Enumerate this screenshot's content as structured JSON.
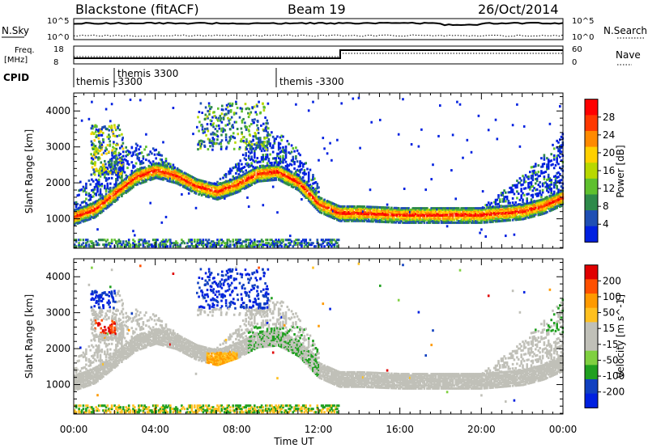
{
  "header": {
    "title": "Blackstone (fitACF)",
    "beam": "Beam 19",
    "date": "26/Oct/2014"
  },
  "top_panels": {
    "nsky_label": "N.Sky",
    "nsearch_label": "N.Search",
    "nsky_ticks": [
      "10^5",
      "10^0"
    ],
    "nsearch_ticks": [
      "10^5",
      "10^0"
    ],
    "freq_label_1": "Freq.",
    "freq_label_2": "[MHz]",
    "freq_ticks": [
      "18",
      "8"
    ],
    "nave_label": "Nave",
    "nave_ticks": [
      "60",
      "0"
    ],
    "cpid_label": "CPID",
    "cpid_segments": [
      {
        "label_1": "themis",
        "label_2": "",
        "start_hour": 0.0
      },
      {
        "label_1": "themis 3300",
        "label_2": "-3300",
        "start_hour": 1.65
      },
      {
        "label_1": "themis -3300",
        "label_2": "",
        "start_hour": 10.0
      }
    ]
  },
  "colors": {
    "power_scale": [
      "#0020e0",
      "#1f4fb4",
      "#2e8a4a",
      "#5fc02e",
      "#b8d800",
      "#ffd000",
      "#ff8a00",
      "#ff3800",
      "#ff0000"
    ],
    "velocity_scale": [
      "#e00000",
      "#ff5000",
      "#ff9a00",
      "#ffc020",
      "#c0c0b8",
      "#c0c0b8",
      "#7fd040",
      "#20a020",
      "#1040c0",
      "#0020e0"
    ]
  },
  "chart_data": [
    {
      "type": "heatmap",
      "name": "Power",
      "xlabel": "",
      "ylabel": "Slant Range [km]",
      "xlim": [
        0,
        24
      ],
      "ylim": [
        180,
        4500
      ],
      "yticks": [
        "1000",
        "2000",
        "3000",
        "4000"
      ],
      "colorbar_label": "Power [dB]",
      "colorbar_ticks": [
        "4",
        "8",
        "12",
        "16",
        "20",
        "24",
        "28"
      ],
      "main_echo_range_km": [
        [
          0.0,
          1050
        ],
        [
          1.0,
          1250
        ],
        [
          2.0,
          1700
        ],
        [
          3.0,
          2150
        ],
        [
          4.0,
          2350
        ],
        [
          5.0,
          2200
        ],
        [
          6.0,
          1900
        ],
        [
          7.0,
          1750
        ],
        [
          8.0,
          1950
        ],
        [
          9.0,
          2250
        ],
        [
          10.0,
          2300
        ],
        [
          11.0,
          2000
        ],
        [
          12.0,
          1400
        ],
        [
          13.0,
          1150
        ],
        [
          14.0,
          1150
        ],
        [
          16.0,
          1100
        ],
        [
          18.0,
          1100
        ],
        [
          20.0,
          1100
        ],
        [
          22.0,
          1200
        ],
        [
          23.0,
          1350
        ],
        [
          24.0,
          1600
        ]
      ]
    },
    {
      "type": "heatmap",
      "name": "Velocity",
      "xlabel": "Time UT",
      "ylabel": "Slant Range [km]",
      "xlim": [
        0,
        24
      ],
      "ylim": [
        180,
        4500
      ],
      "xticks": [
        "00:00",
        "04:00",
        "08:00",
        "12:00",
        "16:00",
        "20:00",
        "00:00"
      ],
      "yticks": [
        "1000",
        "2000",
        "3000",
        "4000"
      ],
      "colorbar_label": "Velocity [m s^-1]",
      "colorbar_ticks": [
        "200",
        "100",
        "50",
        "15",
        "-15",
        "-50",
        "-100",
        "-200"
      ]
    }
  ]
}
